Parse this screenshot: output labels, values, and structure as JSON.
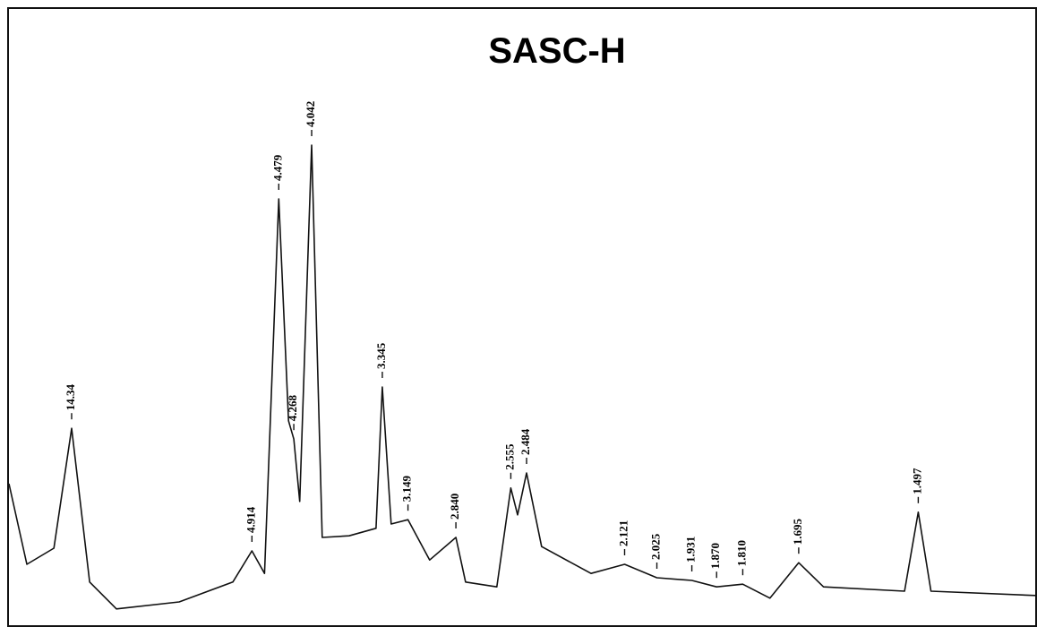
{
  "chart_data": {
    "type": "line",
    "title": "SASC-H",
    "xscale": "bragg",
    "xlim": [
      43.5,
      1.349
    ],
    "ylim": [
      0,
      100
    ],
    "series": [
      {
        "color": "#111111",
        "x": [
          43.5,
          27.5,
          17.7,
          14.34,
          12.03,
          9.7,
          6.68,
          5.28,
          4.914,
          4.7,
          4.479,
          4.34,
          4.268,
          4.19,
          4.042,
          3.92,
          3.64,
          3.397,
          3.345,
          3.275,
          3.149,
          3.001,
          2.84,
          2.785,
          2.622,
          2.555,
          2.524,
          2.484,
          2.42,
          2.232,
          2.121,
          2.025,
          1.931,
          1.87,
          1.81,
          1.752,
          1.695,
          1.649,
          1.517,
          1.497,
          1.479,
          1.349
        ],
        "values": [
          25,
          10,
          13,
          35.3,
          6.7,
          1.7,
          3,
          6.7,
          12.5,
          8.3,
          78,
          36.7,
          33.3,
          21.7,
          88,
          15,
          15.3,
          16.7,
          43,
          17.5,
          18.3,
          10.8,
          15,
          6.7,
          5.8,
          24.2,
          19.2,
          27,
          13.3,
          8.3,
          10,
          7.5,
          7,
          5.8,
          6.3,
          3.7,
          10.3,
          5.8,
          5,
          19.7,
          5,
          4.2
        ]
      }
    ],
    "annotations": [
      {
        "label": "14.34",
        "x": 14.34,
        "y": 35.3
      },
      {
        "label": "4.914",
        "x": 4.914,
        "y": 12.5
      },
      {
        "label": "4.479",
        "x": 4.479,
        "y": 78
      },
      {
        "label": "4.268",
        "x": 4.268,
        "y": 33.3
      },
      {
        "label": "4.042",
        "x": 4.042,
        "y": 88
      },
      {
        "label": "3.345",
        "x": 3.345,
        "y": 43
      },
      {
        "label": "3.149",
        "x": 3.149,
        "y": 18.3
      },
      {
        "label": "2.840",
        "x": 2.84,
        "y": 15
      },
      {
        "label": "2.555",
        "x": 2.555,
        "y": 24.2
      },
      {
        "label": "2.484",
        "x": 2.484,
        "y": 27
      },
      {
        "label": "2.121",
        "x": 2.121,
        "y": 10
      },
      {
        "label": "2.025",
        "x": 2.025,
        "y": 7.5
      },
      {
        "label": "1.931",
        "x": 1.931,
        "y": 7
      },
      {
        "label": "1.870",
        "x": 1.87,
        "y": 5.8
      },
      {
        "label": "1.810",
        "x": 1.81,
        "y": 6.3
      },
      {
        "label": "1.695",
        "x": 1.695,
        "y": 10.3
      },
      {
        "label": "1.497",
        "x": 1.497,
        "y": 19.7
      }
    ]
  }
}
